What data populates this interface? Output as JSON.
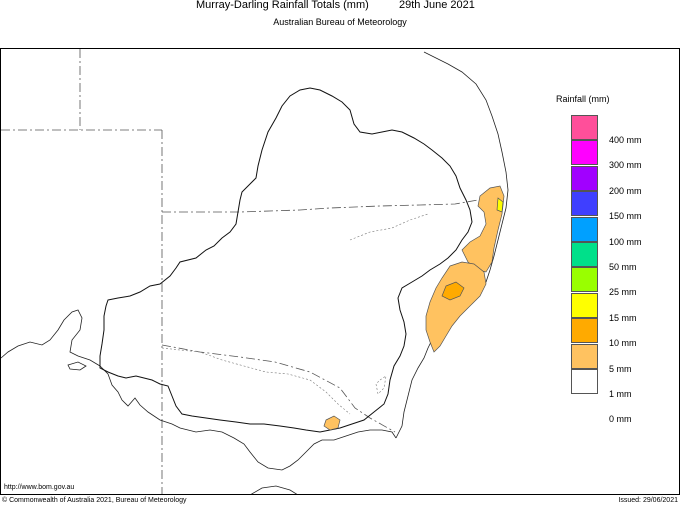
{
  "header": {
    "title": "Murray-Darling Rainfall Totals (mm)",
    "date": "29th June 2021",
    "agency": "Australian Bureau of Meteorology"
  },
  "legend": {
    "title": "Rainfall (mm)",
    "items": [
      {
        "label": "400 mm",
        "color": "#ff4f9a"
      },
      {
        "label": "300 mm",
        "color": "#ff00ff"
      },
      {
        "label": "200 mm",
        "color": "#a100ff"
      },
      {
        "label": "150 mm",
        "color": "#3f3fff"
      },
      {
        "label": "100 mm",
        "color": "#00a0ff"
      },
      {
        "label": "50 mm",
        "color": "#00e08a"
      },
      {
        "label": "25 mm",
        "color": "#99ff00"
      },
      {
        "label": "15 mm",
        "color": "#ffff00"
      },
      {
        "label": "10 mm",
        "color": "#ffaa00"
      },
      {
        "label": "5 mm",
        "color": "#ffc260"
      },
      {
        "label": "1 mm",
        "color": "#ffffff"
      },
      {
        "label": "0 mm",
        "color": ""
      }
    ]
  },
  "map": {
    "rain_1_5_color": "#ffc260",
    "rain_5_10_color": "#ffaa00",
    "rain_15_25_color": "#ffff00"
  },
  "footer": {
    "url": "http://www.bom.gov.au",
    "copyright": "© Commonwealth of Australia 2021, Bureau of Meteorology",
    "issued": "Issued: 29/06/2021"
  }
}
